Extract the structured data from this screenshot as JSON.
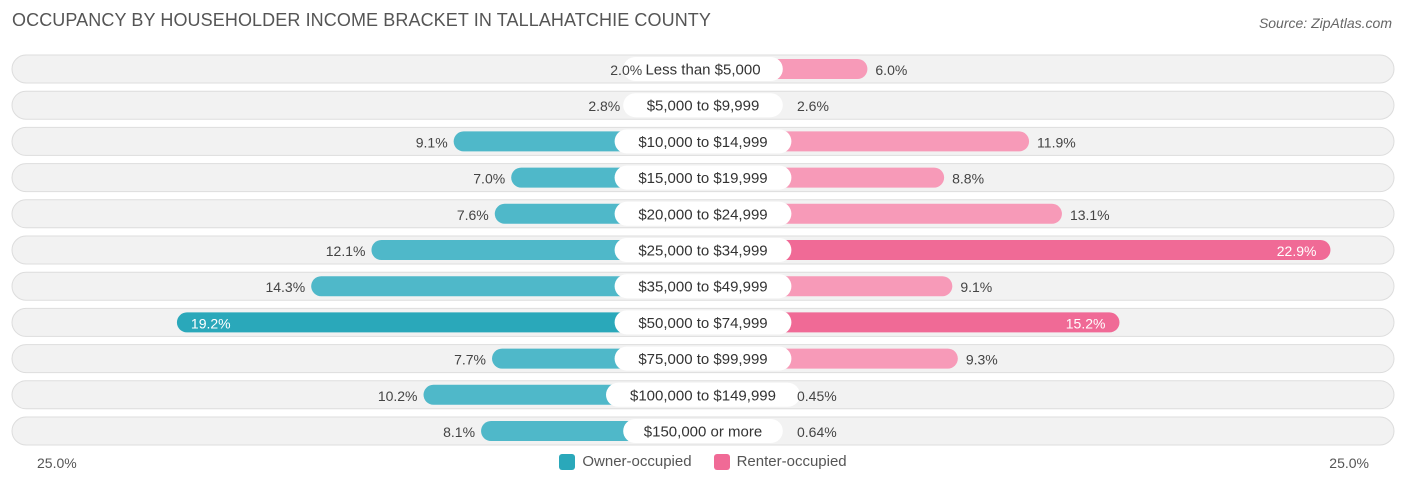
{
  "header": {
    "title": "OCCUPANCY BY HOUSEHOLDER INCOME BRACKET IN TALLAHATCHIE COUNTY",
    "source": "Source: ZipAtlas.com"
  },
  "colors": {
    "owner": "#4fb8c9",
    "owner_strong": "#2aa8ba",
    "renter": "#f79ab8",
    "renter_strong": "#f06a96",
    "row_bg": "#f2f2f2",
    "row_border": "#dddddd"
  },
  "axis": {
    "left_label": "25.0%",
    "right_label": "25.0%"
  },
  "legend": {
    "owner_label": "Owner-occupied",
    "renter_label": "Renter-occupied"
  },
  "chart_data": {
    "type": "bar",
    "orientation": "horizontal-diverging",
    "title": "OCCUPANCY BY HOUSEHOLDER INCOME BRACKET IN TALLAHATCHIE COUNTY",
    "xlim": [
      -25,
      25
    ],
    "categories": [
      "Less than $5,000",
      "$5,000 to $9,999",
      "$10,000 to $14,999",
      "$15,000 to $19,999",
      "$20,000 to $24,999",
      "$25,000 to $34,999",
      "$35,000 to $49,999",
      "$50,000 to $74,999",
      "$75,000 to $99,999",
      "$100,000 to $149,999",
      "$150,000 or more"
    ],
    "series": [
      {
        "name": "Owner-occupied",
        "values": [
          2.0,
          2.8,
          9.1,
          7.0,
          7.6,
          12.1,
          14.3,
          19.2,
          7.7,
          10.2,
          8.1
        ],
        "labels": [
          "2.0%",
          "2.8%",
          "9.1%",
          "7.0%",
          "7.6%",
          "12.1%",
          "14.3%",
          "19.2%",
          "7.7%",
          "10.2%",
          "8.1%"
        ]
      },
      {
        "name": "Renter-occupied",
        "values": [
          6.0,
          2.6,
          11.9,
          8.8,
          13.1,
          22.9,
          9.1,
          15.2,
          9.3,
          0.45,
          0.64
        ],
        "labels": [
          "6.0%",
          "2.6%",
          "11.9%",
          "8.8%",
          "13.1%",
          "22.9%",
          "9.1%",
          "15.2%",
          "9.3%",
          "0.45%",
          "0.64%"
        ]
      }
    ]
  }
}
